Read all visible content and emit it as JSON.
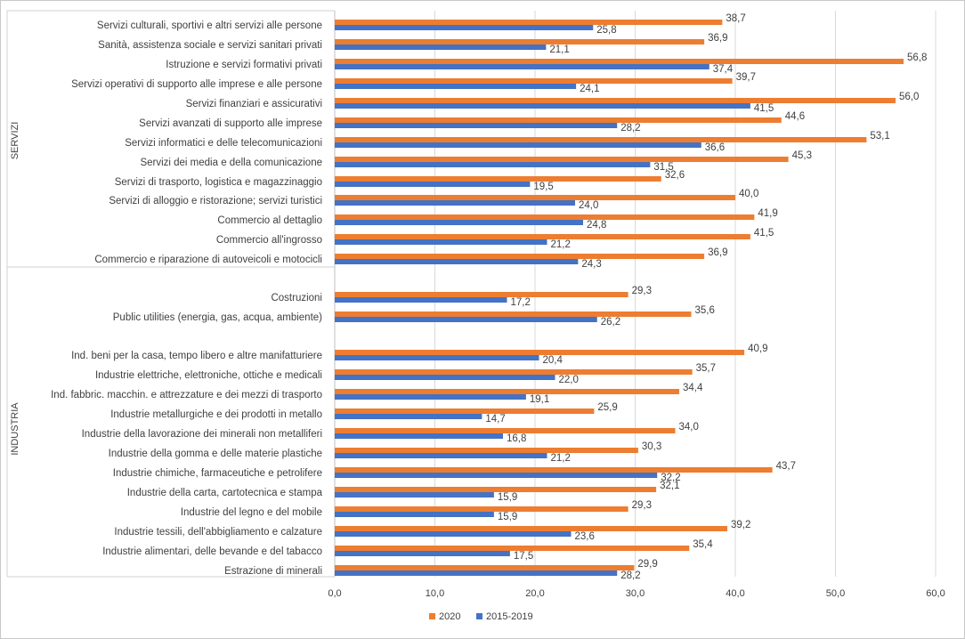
{
  "chart_data": {
    "type": "bar",
    "orientation": "horizontal",
    "groups": [
      {
        "name": "SERVIZI",
        "categories": [
          "Servizi culturali, sportivi e altri servizi alle persone",
          "Sanità, assistenza sociale e servizi sanitari privati",
          "Istruzione e servizi formativi privati",
          "Servizi operativi di supporto alle imprese e alle persone",
          "Servizi finanziari e assicurativi",
          "Servizi avanzati di supporto alle imprese",
          "Servizi informatici e delle telecomunicazioni",
          "Servizi dei media e della comunicazione",
          "Servizi di trasporto, logistica e magazzinaggio",
          "Servizi di alloggio e ristorazione; servizi turistici",
          "Commercio al dettaglio",
          "Commercio all'ingrosso",
          "Commercio e riparazione di autoveicoli e motocicli"
        ],
        "values_2020": [
          38.7,
          36.9,
          56.8,
          39.7,
          56.0,
          44.6,
          53.1,
          45.3,
          32.6,
          40.0,
          41.9,
          41.5,
          36.9
        ],
        "values_2015_2019": [
          25.8,
          21.1,
          37.4,
          24.1,
          41.5,
          28.2,
          36.6,
          31.5,
          19.5,
          24.0,
          24.8,
          21.2,
          24.3
        ],
        "labels_2020": [
          "38,7",
          "36,9",
          "56,8",
          "39,7",
          "56,0",
          "44,6",
          "53,1",
          "45,3",
          "32,6",
          "40,0",
          "41,9",
          "41,5",
          "36,9"
        ],
        "labels_2015_2019": [
          "25,8",
          "21,1",
          "37,4",
          "24,1",
          "41,5",
          "28,2",
          "36,6",
          "31,5",
          "19,5",
          "24,0",
          "24,8",
          "21,2",
          "24,3"
        ]
      },
      {
        "name": "",
        "categories": [
          "Costruzioni",
          "Public utilities (energia, gas, acqua, ambiente)"
        ],
        "values_2020": [
          29.3,
          35.6
        ],
        "values_2015_2019": [
          17.2,
          26.2
        ],
        "labels_2020": [
          "29,3",
          "35,6"
        ],
        "labels_2015_2019": [
          "17,2",
          "26,2"
        ]
      },
      {
        "name": "INDUSTRIA",
        "categories": [
          "Ind. beni per la casa, tempo libero e altre manifatturiere",
          "Industrie elettriche, elettroniche, ottiche e medicali",
          "Ind. fabbric. macchin. e attrezzature e dei mezzi di trasporto",
          "Industrie metallurgiche e dei prodotti in metallo",
          "Industrie della lavorazione dei minerali non metalliferi",
          "Industrie della gomma e delle materie plastiche",
          "Industrie chimiche, farmaceutiche e petrolifere",
          "Industrie della carta, cartotecnica e stampa",
          "Industrie del legno e del mobile",
          "Industrie tessili, dell'abbigliamento e calzature",
          "Industrie alimentari, delle bevande e del tabacco",
          "Estrazione di minerali"
        ],
        "values_2020": [
          40.9,
          35.7,
          34.4,
          25.9,
          34.0,
          30.3,
          43.7,
          32.1,
          29.3,
          39.2,
          35.4,
          29.9
        ],
        "values_2015_2019": [
          20.4,
          22.0,
          19.1,
          14.7,
          16.8,
          21.2,
          32.2,
          15.9,
          15.9,
          23.6,
          17.5,
          28.2
        ],
        "labels_2020": [
          "40,9",
          "35,7",
          "34,4",
          "25,9",
          "34,0",
          "30,3",
          "43,7",
          "32,1",
          "29,3",
          "39,2",
          "35,4",
          "29,9"
        ],
        "labels_2015_2019": [
          "20,4",
          "22,0",
          "19,1",
          "14,7",
          "16,8",
          "21,2",
          "32,2",
          "15,9",
          "15,9",
          "23,6",
          "17,5",
          "28,2"
        ]
      }
    ],
    "series": [
      {
        "name": "2020",
        "color": "#ED7D31"
      },
      {
        "name": "2015-2019",
        "color": "#4472C4"
      }
    ],
    "xlim": [
      0,
      60
    ],
    "xticks": [
      0,
      10,
      20,
      30,
      40,
      50,
      60
    ],
    "xtick_labels": [
      "0,0",
      "10,0",
      "20,0",
      "30,0",
      "40,0",
      "50,0",
      "60,0"
    ],
    "grid": true,
    "legend_position": "bottom",
    "title": "",
    "xlabel": "",
    "ylabel": ""
  }
}
